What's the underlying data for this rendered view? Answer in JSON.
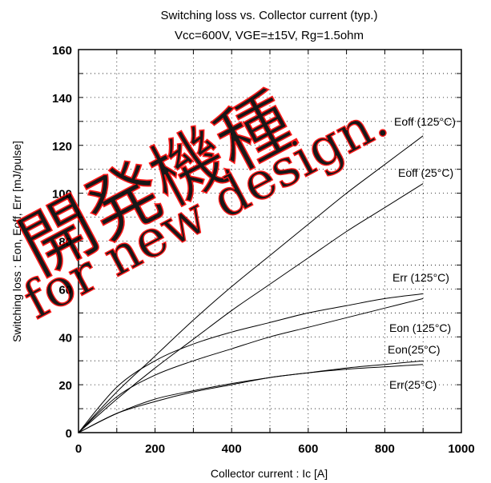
{
  "chart_data": {
    "type": "line",
    "title": "Switching loss vs. Collector current (typ.)",
    "subtitle": "Vcc=600V, VGE=±15V, Rg=1.5ohm",
    "xlabel": "Collector current : Ic [A]",
    "ylabel": "Switching loss : Eon, Eoff, Err [mJ/pulse]",
    "xlim": [
      0,
      1000
    ],
    "ylim": [
      0,
      160
    ],
    "x_ticks": [
      "0",
      "200",
      "400",
      "600",
      "800",
      "1000"
    ],
    "y_ticks": [
      "0",
      "20",
      "40",
      "60",
      "80",
      "100",
      "120",
      "140",
      "160"
    ],
    "grid": true,
    "series": [
      {
        "name": "Eoff (125°C)",
        "x": [
          0,
          100,
          200,
          300,
          400,
          500,
          600,
          700,
          800,
          900
        ],
        "y": [
          0,
          17,
          32,
          47,
          61,
          74,
          87,
          100,
          112,
          124
        ]
      },
      {
        "name": "Eoff (25°C)",
        "x": [
          0,
          100,
          200,
          300,
          400,
          500,
          600,
          700,
          800,
          900
        ],
        "y": [
          0,
          14,
          27,
          39,
          51,
          62,
          73,
          84,
          94,
          104
        ]
      },
      {
        "name": "Err (125°C)",
        "x": [
          0,
          100,
          200,
          300,
          400,
          500,
          600,
          700,
          800,
          900
        ],
        "y": [
          0,
          19,
          30,
          37,
          42,
          46,
          50,
          53,
          56,
          58
        ]
      },
      {
        "name": "Eon (125°C)",
        "x": [
          0,
          100,
          200,
          300,
          400,
          500,
          600,
          700,
          800,
          900
        ],
        "y": [
          0,
          15,
          24,
          30,
          35,
          40,
          44,
          48,
          52,
          56
        ]
      },
      {
        "name": "Eon(25°C)",
        "x": [
          0,
          100,
          200,
          300,
          400,
          500,
          600,
          700,
          800,
          900
        ],
        "y": [
          0,
          8,
          13,
          17,
          20,
          23,
          25,
          27,
          28.5,
          30
        ]
      },
      {
        "name": "Err(25°C)",
        "x": [
          0,
          100,
          200,
          300,
          400,
          500,
          600,
          700,
          800,
          900
        ],
        "y": [
          0,
          8,
          14,
          17.5,
          20.5,
          23,
          25,
          26.5,
          27.5,
          28.5
        ]
      }
    ],
    "series_color": "#000000",
    "watermark": {
      "line1": "開発機種",
      "line2": "for new design.",
      "color": "#ff0000"
    }
  }
}
